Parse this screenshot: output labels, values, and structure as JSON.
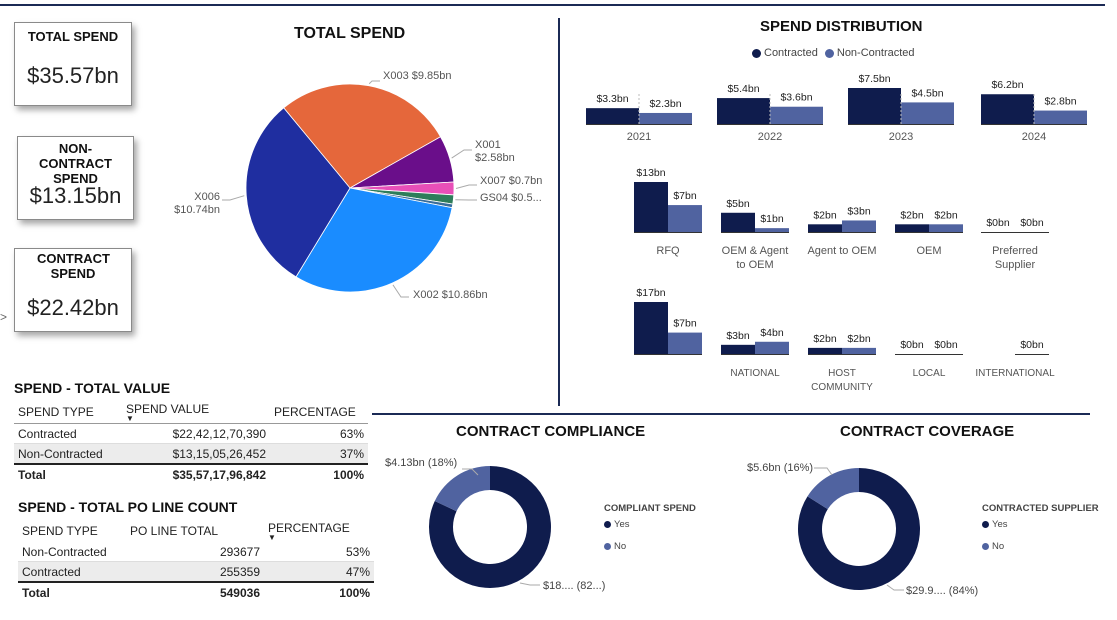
{
  "cards": {
    "total": {
      "title": "TOTAL SPEND",
      "value": "$35.57bn"
    },
    "noncontract": {
      "title": "NON-CONTRACT SPEND",
      "value": "$13.15bn"
    },
    "contract": {
      "title": "CONTRACT SPEND",
      "value": "$22.42bn"
    }
  },
  "side_arrow": ">",
  "pie_title": "TOTAL SPEND",
  "dist_title": "SPEND DISTRIBUTION",
  "dist_legend": {
    "a": "Contracted",
    "b": "Non-Contracted"
  },
  "compliance": {
    "title": "CONTRACT COMPLIANCE",
    "legend_title": "COMPLIANT SPEND",
    "yes": "Yes",
    "no": "No",
    "label_no": "$4.13bn (18%)",
    "label_yes": "$18.... (82...)"
  },
  "coverage": {
    "title": "CONTRACT COVERAGE",
    "legend_title": "CONTRACTED SUPPLIER",
    "yes": "Yes",
    "no": "No",
    "label_no": "$5.6bn (16%)",
    "label_yes": "$29.9.... (84%)"
  },
  "value_table": {
    "title": "SPEND - TOTAL VALUE",
    "headers": [
      "SPEND TYPE",
      "SPEND VALUE",
      "PERCENTAGE"
    ],
    "rows": [
      {
        "type": "Contracted",
        "value": "$22,42,12,70,390",
        "pct": "63%"
      },
      {
        "type": "Non-Contracted",
        "value": "$13,15,05,26,452",
        "pct": "37%"
      }
    ],
    "total": {
      "type": "Total",
      "value": "$35,57,17,96,842",
      "pct": "100%"
    }
  },
  "po_table": {
    "title": "SPEND - TOTAL PO LINE COUNT",
    "headers": [
      "SPEND TYPE",
      "PO LINE TOTAL",
      "PERCENTAGE"
    ],
    "rows": [
      {
        "type": "Non-Contracted",
        "value": "293677",
        "pct": "53%"
      },
      {
        "type": "Contracted",
        "value": "255359",
        "pct": "47%"
      }
    ],
    "total": {
      "type": "Total",
      "value": "549036",
      "pct": "100%"
    }
  },
  "colors": {
    "navy": "#0f1c4d",
    "slate": "#5063a0",
    "pie": {
      "X003": "#e5673b",
      "X001": "#6a0e8a",
      "X007": "#e84fb8",
      "GS04": "#2e7d5a",
      "extra": "#3a6e9a",
      "X002": "#1a8cff",
      "X006": "#1f2ea0"
    }
  },
  "chart_data": [
    {
      "type": "pie",
      "title": "TOTAL SPEND",
      "slices": [
        {
          "name": "X003",
          "value": 9.85,
          "label": "X003 $9.85bn"
        },
        {
          "name": "X001",
          "value": 2.58,
          "label": "X001 $2.58bn"
        },
        {
          "name": "X007",
          "value": 0.7,
          "label": "X007 $0.7bn"
        },
        {
          "name": "GS04",
          "value": 0.5,
          "label": "GS04 $0.5..."
        },
        {
          "name": "",
          "value": 0.2,
          "label": ""
        },
        {
          "name": "X002",
          "value": 10.86,
          "label": "X002 $10.86bn"
        },
        {
          "name": "X006",
          "value": 10.74,
          "label": "X006 $10.74bn"
        }
      ]
    },
    {
      "type": "bar",
      "title": "SPEND DISTRIBUTION",
      "series_names": [
        "Contracted",
        "Non-Contracted"
      ],
      "rows": [
        {
          "groups": [
            {
              "category": "2021",
              "values": [
                3.3,
                2.3
              ],
              "labels": [
                "$3.3bn",
                "$2.3bn"
              ]
            },
            {
              "category": "2022",
              "values": [
                5.4,
                3.6
              ],
              "labels": [
                "$5.4bn",
                "$3.6bn"
              ]
            },
            {
              "category": "2023",
              "values": [
                7.5,
                4.5
              ],
              "labels": [
                "$7.5bn",
                "$4.5bn"
              ]
            },
            {
              "category": "2024",
              "values": [
                6.2,
                2.8
              ],
              "labels": [
                "$6.2bn",
                "$2.8bn"
              ]
            }
          ]
        },
        {
          "groups": [
            {
              "category": "RFQ",
              "values": [
                13,
                7
              ],
              "labels": [
                "$13bn",
                "$7bn"
              ]
            },
            {
              "category": "OEM & Agent to OEM",
              "values": [
                5,
                1
              ],
              "labels": [
                "$5bn",
                "$1bn"
              ]
            },
            {
              "category": "Agent to OEM",
              "values": [
                2,
                3
              ],
              "labels": [
                "$2bn",
                "$3bn"
              ]
            },
            {
              "category": "OEM",
              "values": [
                2,
                2
              ],
              "labels": [
                "$2bn",
                "$2bn"
              ]
            },
            {
              "category": "Preferred Supplier",
              "values": [
                0,
                0
              ],
              "labels": [
                "$0bn",
                "$0bn"
              ]
            }
          ]
        },
        {
          "groups": [
            {
              "category": "",
              "values": [
                17,
                7
              ],
              "labels": [
                "$17bn",
                "$7bn"
              ]
            },
            {
              "category": "NATIONAL",
              "values": [
                3,
                4
              ],
              "labels": [
                "$3bn",
                "$4bn"
              ]
            },
            {
              "category": "HOST COMMUNITY",
              "values": [
                2,
                2
              ],
              "labels": [
                "$2bn",
                "$2bn"
              ]
            },
            {
              "category": "LOCAL",
              "values": [
                0,
                0
              ],
              "labels": [
                "$0bn",
                "$0bn"
              ]
            },
            {
              "category": "INTERNATIONAL",
              "values": [
                null,
                0
              ],
              "labels": [
                "",
                "$0bn"
              ]
            }
          ]
        }
      ]
    },
    {
      "type": "pie",
      "title": "CONTRACT COMPLIANCE",
      "slices": [
        {
          "name": "Yes",
          "value": 82
        },
        {
          "name": "No",
          "value": 18
        }
      ]
    },
    {
      "type": "pie",
      "title": "CONTRACT COVERAGE",
      "slices": [
        {
          "name": "Yes",
          "value": 84
        },
        {
          "name": "No",
          "value": 16
        }
      ]
    }
  ]
}
